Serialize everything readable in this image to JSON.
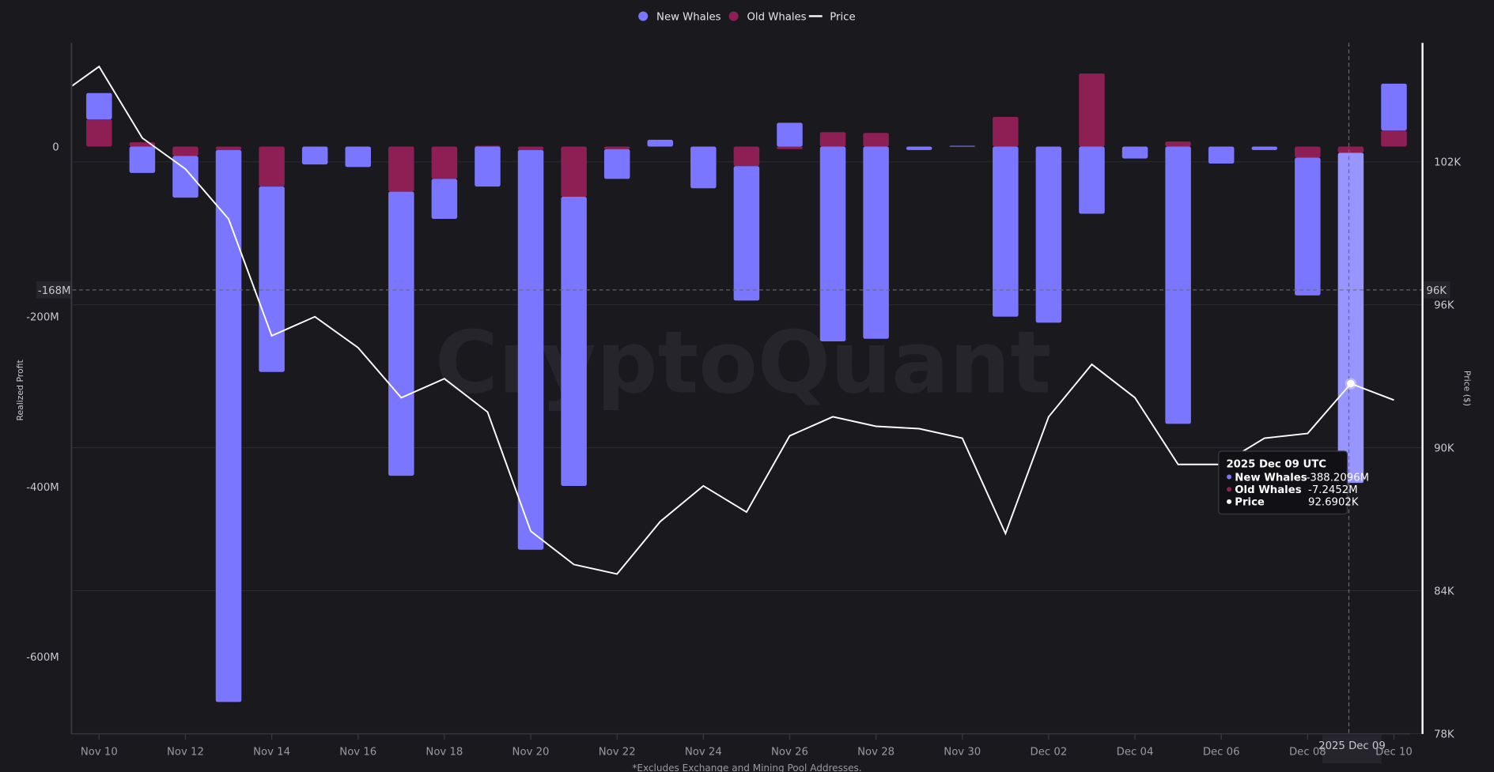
{
  "chart_data": {
    "type": "bar+line",
    "legend": {
      "position": "top",
      "items": [
        "New Whales",
        "Old Whales",
        "Price"
      ]
    },
    "categories": [
      "Nov 10",
      "Nov 11",
      "Nov 12",
      "Nov 13",
      "Nov 14",
      "Nov 15",
      "Nov 16",
      "Nov 17",
      "Nov 18",
      "Nov 19",
      "Nov 20",
      "Nov 21",
      "Nov 22",
      "Nov 23",
      "Nov 24",
      "Nov 25",
      "Nov 26",
      "Nov 27",
      "Nov 28",
      "Nov 29",
      "Nov 30",
      "Dec 01",
      "Dec 02",
      "Dec 03",
      "Dec 04",
      "Dec 05",
      "Dec 06",
      "Dec 07",
      "Dec 08",
      "Dec 09",
      "Dec 10"
    ],
    "x_tick_labels": [
      "Nov 10",
      "Nov 12",
      "Nov 14",
      "Nov 16",
      "Nov 18",
      "Nov 20",
      "Nov 22",
      "Nov 24",
      "Nov 26",
      "Nov 28",
      "Nov 30",
      "Dec 02",
      "Dec 04",
      "Dec 06",
      "Dec 08",
      "Dec 10"
    ],
    "series": [
      {
        "name": "New Whales",
        "type": "bar",
        "axis": "left",
        "unit": "M",
        "color": "#7a76ff",
        "values": [
          31,
          -31,
          -49,
          -649,
          -218,
          -21,
          -24,
          -334,
          -47,
          -47,
          -470,
          -340,
          -35,
          8,
          -49,
          -158,
          28,
          -229,
          -226,
          -4,
          1,
          -200,
          -207,
          -79,
          -14,
          -326,
          -20,
          -4,
          -162,
          -388.2096,
          55
        ]
      },
      {
        "name": "Old Whales",
        "type": "bar",
        "axis": "left",
        "unit": "M",
        "color": "#8e1f55",
        "values": [
          32,
          5,
          -11,
          -4,
          -47,
          0,
          0,
          -53,
          -38,
          1,
          -4,
          -59,
          -3,
          0,
          0,
          -23,
          -3,
          17,
          16,
          0,
          0,
          35,
          0,
          86,
          0,
          6,
          0,
          0,
          -13,
          -7.2452,
          19
        ]
      },
      {
        "name": "Price",
        "type": "line",
        "axis": "right",
        "unit": "K",
        "color": "#ffffff",
        "leading_value_nov09": 104.7,
        "values": [
          106.0,
          103.0,
          101.7,
          99.6,
          94.7,
          95.5,
          94.2,
          92.1,
          92.9,
          91.5,
          86.5,
          85.1,
          84.7,
          86.9,
          88.4,
          87.3,
          90.5,
          91.3,
          90.9,
          90.8,
          90.4,
          86.4,
          91.3,
          93.5,
          92.1,
          89.3,
          89.3,
          90.4,
          90.6,
          92.6902,
          92.0
        ]
      }
    ],
    "left_axis": {
      "label": "Realized Profit",
      "ticks": [
        0,
        -200,
        -400,
        -600
      ],
      "tick_labels": [
        "0",
        "-200M",
        "-400M",
        "-600M"
      ],
      "range": [
        -690,
        105
      ]
    },
    "right_axis": {
      "label": "Price ($)",
      "ticks": [
        102,
        96,
        90,
        84,
        78
      ],
      "tick_labels": [
        "102K",
        "96K",
        "90K",
        "84K",
        "78K"
      ],
      "range": [
        78,
        107
      ]
    },
    "grid": true,
    "crosshair": {
      "left_label": "-168M",
      "right_label": "96K",
      "x_label": "2025 Dec 09",
      "left_value": -168,
      "right_value": 96.6
    },
    "tooltip": {
      "title": "2025 Dec 09 UTC",
      "rows": [
        {
          "label": "New Whales",
          "value": "-388.2096M",
          "color": "#7a76ff"
        },
        {
          "label": "Old Whales",
          "value": "-7.2452M",
          "color": "#8e1f55"
        },
        {
          "label": "Price",
          "value": "92.6902K",
          "color": "#ffffff"
        }
      ]
    },
    "highlight_index": 29,
    "footnote": "*Excludes Exchange and Mining Pool Addresses.",
    "watermark": "CryptoQuant"
  }
}
